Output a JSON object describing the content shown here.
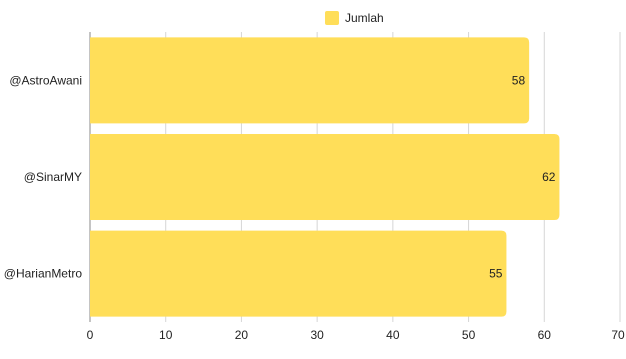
{
  "chart_data": {
    "type": "bar",
    "orientation": "horizontal",
    "categories": [
      "@AstroAwani",
      "@SinarMY",
      "@HarianMetro"
    ],
    "series": [
      {
        "name": "Jumlah",
        "values": [
          58,
          62,
          55
        ],
        "color": "#FFDE59"
      }
    ],
    "xlim": [
      0,
      70
    ],
    "x_ticks": [
      0,
      10,
      20,
      30,
      40,
      50,
      60,
      70
    ],
    "grid": true,
    "legend_position": "top-center"
  }
}
